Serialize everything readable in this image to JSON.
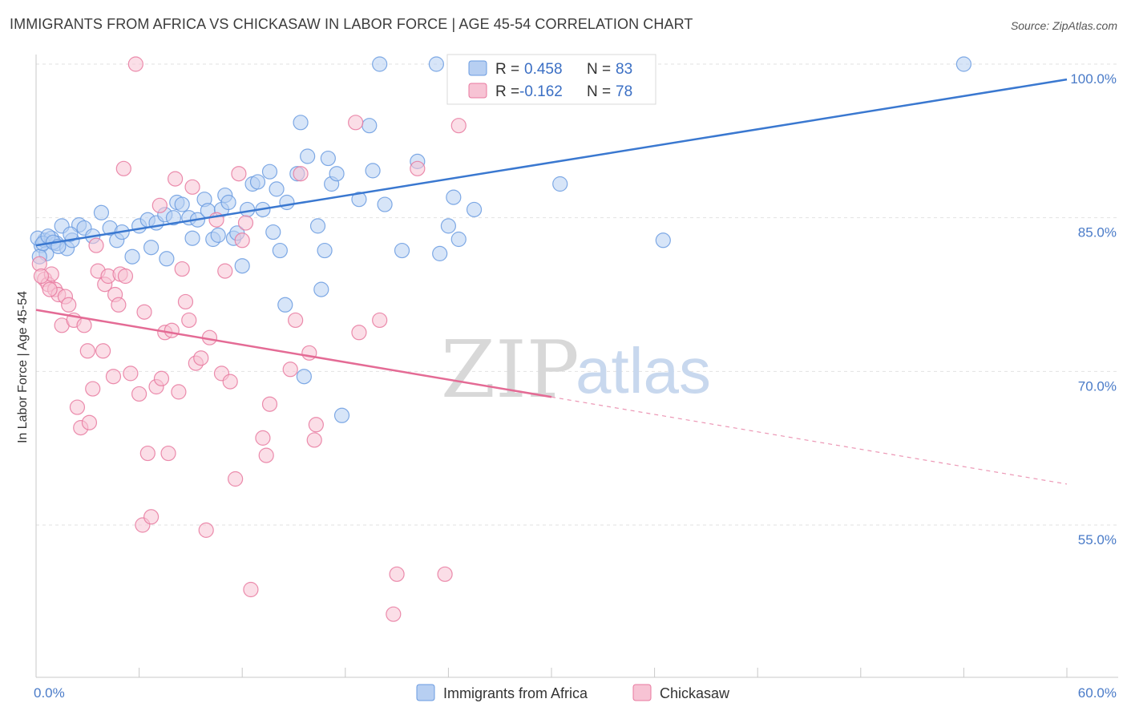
{
  "title": "IMMIGRANTS FROM AFRICA VS CHICKASAW IN LABOR FORCE | AGE 45-54 CORRELATION CHART",
  "source": "Source: ZipAtlas.com",
  "watermark": {
    "zip": "ZIP",
    "atlas": "atlas"
  },
  "colors": {
    "blue": "#6a9be0",
    "blue_fill": "#b7cff2",
    "pink": "#e8799f",
    "pink_fill": "#f7c3d4",
    "blue_line": "#3a78d0",
    "pink_line": "#e46b95"
  },
  "chart_data": {
    "type": "scatter",
    "ylabel": "In Labor Force | Age 45-54",
    "xlim": [
      0,
      60
    ],
    "ylim": [
      40,
      102
    ],
    "x_tick_labels": [
      {
        "v": 0,
        "label": "0.0%"
      },
      {
        "v": 60,
        "label": "60.0%"
      }
    ],
    "y_tick_labels": [
      {
        "v": 55,
        "label": "55.0%"
      },
      {
        "v": 70,
        "label": "70.0%"
      },
      {
        "v": 85,
        "label": "85.0%"
      },
      {
        "v": 100,
        "label": "100.0%"
      }
    ],
    "legend": [
      {
        "r_label": "R =",
        "r_value": "0.458",
        "n_label": "N =",
        "n_value": "83"
      },
      {
        "r_label": "R =",
        "r_value": "-0.162",
        "n_label": "N =",
        "n_value": "78"
      }
    ],
    "series": [
      {
        "name": "Immigrants from Africa",
        "trend": {
          "x0": 0,
          "y0": 82.3,
          "x1": 60,
          "y1": 98.5
        },
        "points": [
          [
            0.3,
            82.3
          ],
          [
            0.5,
            82.8
          ],
          [
            0.6,
            81.5
          ],
          [
            0.9,
            83.0
          ],
          [
            1.2,
            82.5
          ],
          [
            1.5,
            84.2
          ],
          [
            1.8,
            82.0
          ],
          [
            2.1,
            82.8
          ],
          [
            2.5,
            84.3
          ],
          [
            2.8,
            84.0
          ],
          [
            3.3,
            83.2
          ],
          [
            3.8,
            85.5
          ],
          [
            4.3,
            84.0
          ],
          [
            4.7,
            82.8
          ],
          [
            5.0,
            83.6
          ],
          [
            5.6,
            81.2
          ],
          [
            6.0,
            84.2
          ],
          [
            6.5,
            84.8
          ],
          [
            6.7,
            82.1
          ],
          [
            7.0,
            84.5
          ],
          [
            7.5,
            85.3
          ],
          [
            7.6,
            81.0
          ],
          [
            8.0,
            85.0
          ],
          [
            8.2,
            86.5
          ],
          [
            8.5,
            86.3
          ],
          [
            8.9,
            85.0
          ],
          [
            9.1,
            83.0
          ],
          [
            9.4,
            84.8
          ],
          [
            9.8,
            86.8
          ],
          [
            10.0,
            85.7
          ],
          [
            10.3,
            82.9
          ],
          [
            10.6,
            83.3
          ],
          [
            10.8,
            85.8
          ],
          [
            11.0,
            87.2
          ],
          [
            11.2,
            86.5
          ],
          [
            11.5,
            83.0
          ],
          [
            11.7,
            83.5
          ],
          [
            12.0,
            80.3
          ],
          [
            12.3,
            85.8
          ],
          [
            12.6,
            88.3
          ],
          [
            12.9,
            88.5
          ],
          [
            13.2,
            85.8
          ],
          [
            13.6,
            89.5
          ],
          [
            13.8,
            83.6
          ],
          [
            14.0,
            87.8
          ],
          [
            14.2,
            81.8
          ],
          [
            14.5,
            76.5
          ],
          [
            14.6,
            86.5
          ],
          [
            15.2,
            89.3
          ],
          [
            15.4,
            94.3
          ],
          [
            15.6,
            69.5
          ],
          [
            15.8,
            91.0
          ],
          [
            16.4,
            84.2
          ],
          [
            16.6,
            78.0
          ],
          [
            16.8,
            81.8
          ],
          [
            17.0,
            90.8
          ],
          [
            17.2,
            88.3
          ],
          [
            17.5,
            89.3
          ],
          [
            17.8,
            65.7
          ],
          [
            18.8,
            86.8
          ],
          [
            19.4,
            94.0
          ],
          [
            19.6,
            89.6
          ],
          [
            20.0,
            100.0
          ],
          [
            20.3,
            86.3
          ],
          [
            21.3,
            81.8
          ],
          [
            22.2,
            90.5
          ],
          [
            23.3,
            100.0
          ],
          [
            23.5,
            81.5
          ],
          [
            24.0,
            84.2
          ],
          [
            24.3,
            87.0
          ],
          [
            24.6,
            82.9
          ],
          [
            25.5,
            85.8
          ],
          [
            29.0,
            100.0
          ],
          [
            30.5,
            88.3
          ],
          [
            36.5,
            82.8
          ],
          [
            54.0,
            100.0
          ],
          [
            0.1,
            83.0
          ],
          [
            0.2,
            81.2
          ],
          [
            0.4,
            82.5
          ],
          [
            0.7,
            83.2
          ],
          [
            1.0,
            82.6
          ],
          [
            1.3,
            82.2
          ],
          [
            2.0,
            83.4
          ]
        ]
      },
      {
        "name": "Chickasaw",
        "trend": {
          "x0": 0,
          "y0": 76.0,
          "x1": 30,
          "y1": 67.5
        },
        "trend_extension": {
          "x0": 30,
          "y0": 67.5,
          "x1": 60,
          "y1": 59.0
        },
        "points": [
          [
            0.2,
            80.5
          ],
          [
            0.5,
            79.0
          ],
          [
            0.7,
            78.5
          ],
          [
            0.9,
            79.5
          ],
          [
            1.1,
            78.0
          ],
          [
            1.3,
            77.5
          ],
          [
            1.5,
            74.5
          ],
          [
            1.7,
            77.3
          ],
          [
            1.9,
            76.5
          ],
          [
            2.2,
            75.0
          ],
          [
            2.4,
            66.5
          ],
          [
            2.6,
            64.5
          ],
          [
            2.8,
            74.5
          ],
          [
            3.0,
            72.0
          ],
          [
            3.1,
            65.0
          ],
          [
            3.3,
            68.3
          ],
          [
            3.5,
            82.3
          ],
          [
            3.6,
            79.8
          ],
          [
            3.9,
            72.0
          ],
          [
            4.0,
            78.5
          ],
          [
            4.2,
            79.3
          ],
          [
            4.5,
            69.5
          ],
          [
            4.6,
            77.5
          ],
          [
            4.8,
            76.5
          ],
          [
            4.9,
            79.5
          ],
          [
            5.1,
            89.8
          ],
          [
            5.2,
            79.3
          ],
          [
            5.5,
            69.8
          ],
          [
            5.8,
            100.0
          ],
          [
            6.0,
            67.8
          ],
          [
            6.2,
            55.0
          ],
          [
            6.3,
            75.8
          ],
          [
            6.5,
            62.0
          ],
          [
            6.7,
            55.8
          ],
          [
            7.0,
            68.5
          ],
          [
            7.2,
            86.2
          ],
          [
            7.3,
            69.3
          ],
          [
            7.5,
            73.8
          ],
          [
            7.7,
            62.0
          ],
          [
            7.9,
            74.0
          ],
          [
            8.1,
            88.8
          ],
          [
            8.3,
            68.0
          ],
          [
            8.5,
            80.0
          ],
          [
            8.7,
            76.8
          ],
          [
            8.9,
            75.0
          ],
          [
            9.1,
            88.0
          ],
          [
            9.3,
            70.8
          ],
          [
            9.6,
            71.3
          ],
          [
            9.9,
            54.5
          ],
          [
            10.1,
            73.3
          ],
          [
            10.5,
            84.8
          ],
          [
            10.8,
            69.8
          ],
          [
            11.0,
            79.8
          ],
          [
            11.3,
            69.0
          ],
          [
            11.6,
            59.5
          ],
          [
            11.8,
            89.3
          ],
          [
            12.0,
            82.8
          ],
          [
            12.2,
            84.5
          ],
          [
            12.5,
            48.7
          ],
          [
            13.2,
            63.5
          ],
          [
            13.4,
            61.8
          ],
          [
            13.6,
            66.8
          ],
          [
            14.8,
            70.2
          ],
          [
            15.1,
            75.0
          ],
          [
            15.4,
            89.3
          ],
          [
            15.9,
            71.8
          ],
          [
            16.2,
            63.3
          ],
          [
            16.3,
            64.8
          ],
          [
            18.6,
            94.3
          ],
          [
            18.8,
            73.8
          ],
          [
            20.0,
            75.0
          ],
          [
            20.8,
            46.3
          ],
          [
            21.0,
            50.2
          ],
          [
            22.2,
            89.8
          ],
          [
            23.8,
            50.2
          ],
          [
            24.6,
            94.0
          ],
          [
            0.3,
            79.3
          ],
          [
            0.8,
            78.0
          ]
        ]
      }
    ]
  }
}
